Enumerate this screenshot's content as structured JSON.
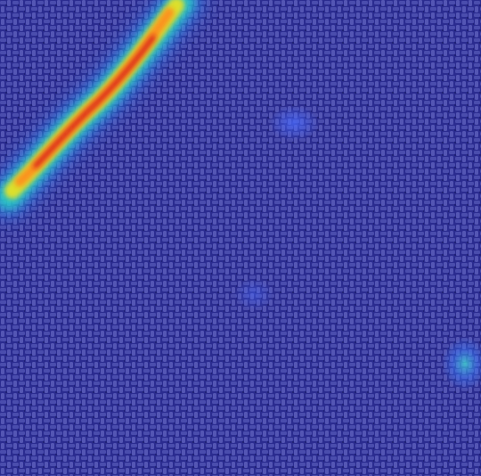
{
  "image": {
    "subject": "heatmap-overlay-on-woven-fabric",
    "colors": {
      "base": "#2b2c8f",
      "weave_light": "#6f73c9",
      "weave_dark": "#1d1f6e",
      "heat_low": "#2f8fff",
      "heat_mid": "#25d27a",
      "heat_high": "#f2e21c",
      "heat_peak": "#d4141a"
    }
  }
}
